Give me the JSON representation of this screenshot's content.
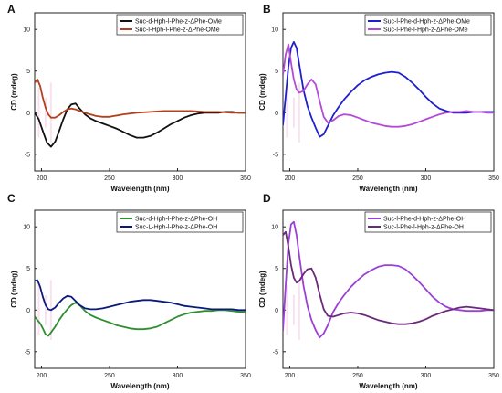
{
  "colors": {
    "black": "#111111",
    "rust": "#b2401d",
    "blue": "#1f1fcf",
    "violet": "#b44ad8",
    "green": "#2f8f2f",
    "navy": "#0b1a7a",
    "purple": "#9b40d6",
    "plum": "#6a2a7a",
    "pink_noise": "#f4a7d6"
  },
  "chart_data": [
    {
      "panel_letter": "A",
      "type": "line",
      "xlabel": "Wavelength (nm)",
      "ylabel": "CD (mdeg)",
      "xlim": [
        195,
        350
      ],
      "ylim": [
        -7,
        12
      ],
      "xticks": [
        "200",
        "250",
        "300",
        "350"
      ],
      "yticks": [
        "-5",
        "0",
        "5",
        "10"
      ],
      "legend_position": "top-right",
      "series": [
        {
          "name": "Suc-d-Hph-l-Phe-z-ΔPhe-OMe",
          "color_key": "black",
          "x": [
            195,
            198,
            201,
            204,
            207,
            210,
            213,
            216,
            219,
            222,
            225,
            228,
            232,
            236,
            240,
            245,
            250,
            255,
            260,
            265,
            270,
            275,
            280,
            285,
            290,
            295,
            300,
            305,
            310,
            315,
            320,
            325,
            330,
            335,
            340,
            345,
            350
          ],
          "y": [
            0,
            -0.8,
            -2.2,
            -3.6,
            -4.1,
            -3.5,
            -2.2,
            -0.8,
            0.4,
            1.0,
            1.1,
            0.5,
            -0.2,
            -0.7,
            -1.0,
            -1.3,
            -1.6,
            -1.9,
            -2.3,
            -2.7,
            -3.0,
            -3.0,
            -2.8,
            -2.4,
            -1.9,
            -1.4,
            -1.0,
            -0.6,
            -0.3,
            -0.1,
            0,
            0,
            0,
            0.1,
            0.1,
            0,
            0
          ]
        },
        {
          "name": "Suc-l-Hph-l-Phe-z-ΔPhe-OMe",
          "color_key": "rust",
          "x": [
            195,
            197,
            199,
            201,
            203,
            205,
            207,
            210,
            213,
            216,
            219,
            222,
            225,
            228,
            232,
            236,
            240,
            245,
            250,
            260,
            270,
            280,
            290,
            300,
            310,
            320,
            330,
            340,
            350
          ],
          "y": [
            3.6,
            4.0,
            3.2,
            1.8,
            0.6,
            -0.2,
            -0.6,
            -0.6,
            -0.3,
            0.1,
            0.4,
            0.5,
            0.4,
            0.2,
            0,
            -0.2,
            -0.4,
            -0.5,
            -0.5,
            -0.2,
            0,
            0.1,
            0.2,
            0.2,
            0.2,
            0.1,
            0.1,
            0,
            0
          ]
        }
      ]
    },
    {
      "panel_letter": "B",
      "type": "line",
      "xlabel": "Wavelength (nm)",
      "ylabel": "CD (mdeg)",
      "xlim": [
        195,
        350
      ],
      "ylim": [
        -7,
        12
      ],
      "xticks": [
        "200",
        "250",
        "300",
        "350"
      ],
      "yticks": [
        "-5",
        "0",
        "5",
        "10"
      ],
      "legend_position": "top-right",
      "series": [
        {
          "name": "Suc-l-Phe-d-Hph-z-ΔPhe-OMe",
          "color_key": "blue",
          "x": [
            195,
            197,
            199,
            201,
            203,
            205,
            207,
            210,
            213,
            216,
            219,
            222,
            225,
            228,
            232,
            236,
            240,
            245,
            250,
            255,
            260,
            265,
            270,
            275,
            280,
            285,
            290,
            295,
            300,
            305,
            310,
            315,
            320,
            325,
            330,
            335,
            340,
            345,
            350
          ],
          "y": [
            -1.5,
            2.0,
            5.5,
            7.8,
            8.5,
            7.8,
            5.8,
            2.8,
            0.8,
            -0.6,
            -1.8,
            -2.9,
            -2.6,
            -1.6,
            -0.3,
            0.7,
            1.6,
            2.5,
            3.3,
            3.9,
            4.3,
            4.6,
            4.8,
            4.9,
            4.8,
            4.3,
            3.6,
            2.8,
            1.9,
            1.1,
            0.5,
            0.2,
            0,
            0,
            0,
            0.1,
            0.1,
            0.1,
            0.1
          ]
        },
        {
          "name": "Suc-l-Phe-l-Hph-z-ΔPhe-OMe",
          "color_key": "violet",
          "x": [
            195,
            197,
            199,
            201,
            203,
            205,
            207,
            210,
            213,
            216,
            219,
            222,
            225,
            228,
            232,
            236,
            240,
            245,
            250,
            255,
            260,
            265,
            270,
            275,
            280,
            285,
            290,
            295,
            300,
            305,
            310,
            315,
            320,
            325,
            330,
            335,
            340,
            345,
            350
          ],
          "y": [
            4.5,
            7.0,
            8.2,
            6.0,
            4.0,
            2.8,
            2.4,
            2.6,
            3.4,
            4.0,
            3.4,
            1.4,
            -0.5,
            -1.2,
            -0.9,
            -0.4,
            -0.2,
            -0.3,
            -0.6,
            -0.9,
            -1.2,
            -1.4,
            -1.6,
            -1.7,
            -1.7,
            -1.6,
            -1.4,
            -1.1,
            -0.8,
            -0.5,
            -0.2,
            0,
            0.1,
            0.1,
            0.2,
            0.1,
            0.1,
            0,
            0
          ]
        }
      ]
    },
    {
      "panel_letter": "C",
      "type": "line",
      "xlabel": "Wavelength (nm)",
      "ylabel": "CD (mdeg)",
      "xlim": [
        195,
        350
      ],
      "ylim": [
        -7,
        12
      ],
      "xticks": [
        "200",
        "250",
        "300",
        "350"
      ],
      "yticks": [
        "-5",
        "0",
        "5",
        "10"
      ],
      "legend_position": "top-right",
      "series": [
        {
          "name": "Suc-d-Hph-l-Phe-z-ΔPhe-OH",
          "color_key": "green",
          "x": [
            195,
            197,
            199,
            201,
            203,
            205,
            207,
            210,
            213,
            216,
            219,
            222,
            225,
            228,
            232,
            236,
            240,
            245,
            250,
            255,
            260,
            265,
            270,
            275,
            280,
            285,
            290,
            295,
            300,
            305,
            310,
            315,
            320,
            325,
            330,
            335,
            340,
            345,
            350
          ],
          "y": [
            -0.8,
            -1.2,
            -1.6,
            -2.2,
            -2.9,
            -3.1,
            -2.7,
            -2.0,
            -1.2,
            -0.5,
            0.1,
            0.6,
            0.9,
            0.6,
            -0.1,
            -0.6,
            -0.9,
            -1.2,
            -1.5,
            -1.8,
            -2.0,
            -2.2,
            -2.3,
            -2.3,
            -2.2,
            -2.0,
            -1.6,
            -1.2,
            -0.8,
            -0.5,
            -0.3,
            -0.2,
            -0.1,
            -0.1,
            0,
            0,
            -0.1,
            -0.2,
            -0.2
          ]
        },
        {
          "name": "Suc-L-Hph-l-Phe-z-ΔPhe-OH",
          "color_key": "navy",
          "x": [
            195,
            197,
            199,
            201,
            203,
            205,
            207,
            210,
            213,
            216,
            219,
            222,
            225,
            228,
            232,
            236,
            240,
            245,
            250,
            255,
            260,
            265,
            270,
            275,
            280,
            285,
            290,
            295,
            300,
            305,
            310,
            315,
            320,
            325,
            330,
            335,
            340,
            345,
            350
          ],
          "y": [
            3.5,
            3.6,
            2.8,
            1.6,
            0.6,
            0.1,
            0,
            0.3,
            0.9,
            1.4,
            1.7,
            1.6,
            1.1,
            0.6,
            0.2,
            0.1,
            0.1,
            0.2,
            0.4,
            0.6,
            0.8,
            1.0,
            1.1,
            1.2,
            1.2,
            1.1,
            1.0,
            0.9,
            0.7,
            0.5,
            0.4,
            0.3,
            0.2,
            0.1,
            0.1,
            0.1,
            0.1,
            0,
            0
          ]
        }
      ]
    },
    {
      "panel_letter": "D",
      "type": "line",
      "xlabel": "Wavelength (nm)",
      "ylabel": "CD (mdeg)",
      "xlim": [
        195,
        350
      ],
      "ylim": [
        -7,
        12
      ],
      "xticks": [
        "200",
        "250",
        "300",
        "350"
      ],
      "yticks": [
        "-5",
        "0",
        "5",
        "10"
      ],
      "legend_position": "top-right",
      "series": [
        {
          "name": "Suc-l-Phe-d-Hph-z-ΔPhe-OH",
          "color_key": "purple",
          "x": [
            195,
            197,
            199,
            201,
            203,
            205,
            207,
            210,
            213,
            216,
            219,
            222,
            225,
            228,
            232,
            236,
            240,
            245,
            250,
            255,
            260,
            265,
            270,
            275,
            280,
            285,
            290,
            295,
            300,
            305,
            310,
            315,
            320,
            325,
            330,
            335,
            340,
            345,
            350
          ],
          "y": [
            -2.5,
            3.0,
            8.0,
            10.3,
            10.6,
            9.0,
            6.5,
            3.0,
            0.5,
            -1.2,
            -2.4,
            -3.3,
            -2.8,
            -1.8,
            -0.2,
            0.9,
            1.8,
            2.8,
            3.6,
            4.3,
            4.8,
            5.2,
            5.4,
            5.4,
            5.3,
            4.9,
            4.2,
            3.4,
            2.5,
            1.6,
            0.9,
            0.4,
            0.1,
            0,
            -0.1,
            -0.1,
            -0.1,
            0,
            0
          ]
        },
        {
          "name": "Suc-l-Phe-l-Hph-z-ΔPhe-OH",
          "color_key": "plum",
          "x": [
            195,
            197,
            199,
            201,
            203,
            205,
            207,
            210,
            213,
            216,
            219,
            222,
            225,
            228,
            232,
            236,
            240,
            245,
            250,
            255,
            260,
            265,
            270,
            275,
            280,
            285,
            290,
            295,
            300,
            305,
            310,
            315,
            320,
            325,
            330,
            335,
            340,
            345,
            350
          ],
          "y": [
            9.0,
            9.4,
            7.6,
            5.4,
            3.9,
            3.3,
            3.5,
            4.3,
            4.9,
            5.0,
            3.9,
            1.9,
            0.1,
            -0.7,
            -0.8,
            -0.6,
            -0.4,
            -0.3,
            -0.4,
            -0.6,
            -0.9,
            -1.2,
            -1.4,
            -1.6,
            -1.7,
            -1.7,
            -1.6,
            -1.4,
            -1.1,
            -0.7,
            -0.4,
            -0.1,
            0.1,
            0.3,
            0.4,
            0.3,
            0.2,
            0.1,
            0
          ]
        }
      ]
    }
  ]
}
